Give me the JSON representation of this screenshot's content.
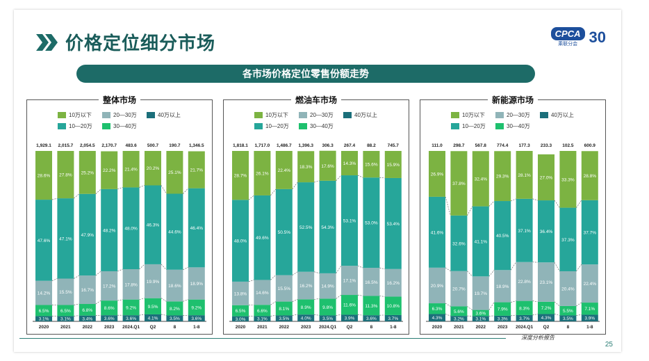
{
  "page": {
    "title": "价格定位细分市场",
    "banner": "各市场价格定位零售份额走势",
    "logo_text": "CPCA",
    "logo_sub": "乘联分会",
    "logo_30": "30",
    "footer_text": "深度分析报告",
    "page_number": "25"
  },
  "colors": {
    "lt10": "#7cb342",
    "r10_20": "#26a69a",
    "r20_30": "#90b4b8",
    "r30_40": "#1ec06e",
    "gt40": "#1b6f7a",
    "accent": "#1d6b67"
  },
  "legend": [
    {
      "key": "lt10",
      "label": "10万以下"
    },
    {
      "key": "r20_30",
      "label": "20—30万"
    },
    {
      "key": "gt40",
      "label": "40万以上"
    },
    {
      "key": "r10_20",
      "label": "10—20万"
    },
    {
      "key": "r30_40",
      "label": "30—40万"
    }
  ],
  "chart_data": [
    {
      "type": "bar",
      "stacked": "percent",
      "title": "整体市场",
      "categories": [
        "2020",
        "2021",
        "2022",
        "2023",
        "2024.Q1",
        "Q2",
        "8",
        "1-8"
      ],
      "totals": [
        "1,929.1",
        "2,015.7",
        "2,054.5",
        "2,170.7",
        "483.6",
        "500.7",
        "190.7",
        "1,346.5"
      ],
      "series": [
        {
          "name": "40万以上",
          "key": "gt40",
          "values": [
            3.1,
            3.1,
            3.4,
            3.6,
            3.6,
            4.1,
            3.5,
            3.6
          ]
        },
        {
          "name": "30—40万",
          "key": "r30_40",
          "values": [
            6.5,
            6.5,
            6.8,
            8.6,
            9.2,
            9.5,
            8.2,
            9.2
          ]
        },
        {
          "name": "20—30万",
          "key": "r20_30",
          "values": [
            14.2,
            15.5,
            16.7,
            17.2,
            17.8,
            19.9,
            18.6,
            18.9
          ]
        },
        {
          "name": "10—20万",
          "key": "r10_20",
          "values": [
            47.6,
            47.1,
            47.9,
            48.2,
            48.0,
            46.3,
            44.6,
            46.4
          ]
        },
        {
          "name": "10万以下",
          "key": "lt10",
          "values": [
            28.6,
            27.8,
            25.2,
            22.2,
            21.4,
            20.2,
            25.1,
            21.7
          ]
        }
      ]
    },
    {
      "type": "bar",
      "stacked": "percent",
      "title": "燃油车市场",
      "categories": [
        "2020",
        "2021",
        "2022",
        "2023",
        "2024.Q1",
        "Q2",
        "8",
        "1-8"
      ],
      "totals": [
        "1,818.1",
        "1,717.0",
        "1,486.7",
        "1,396.3",
        "306.3",
        "267.4",
        "88.2",
        "745.7"
      ],
      "series": [
        {
          "name": "40万以上",
          "key": "gt40",
          "values": [
            3.0,
            3.1,
            3.5,
            4.0,
            3.5,
            3.9,
            3.6,
            3.7
          ]
        },
        {
          "name": "30—40万",
          "key": "r30_40",
          "values": [
            6.5,
            6.6,
            8.1,
            8.9,
            9.8,
            11.6,
            11.3,
            10.8
          ]
        },
        {
          "name": "20—30万",
          "key": "r20_30",
          "values": [
            13.8,
            14.6,
            15.5,
            16.2,
            14.9,
            17.1,
            16.5,
            16.2
          ]
        },
        {
          "name": "10—20万",
          "key": "r10_20",
          "values": [
            48.0,
            49.6,
            50.5,
            52.5,
            54.3,
            53.1,
            53.0,
            53.4
          ]
        },
        {
          "name": "10万以下",
          "key": "lt10",
          "values": [
            28.7,
            26.1,
            22.4,
            18.3,
            17.6,
            14.3,
            15.6,
            15.9
          ]
        }
      ]
    },
    {
      "type": "bar",
      "stacked": "percent",
      "title": "新能源市场",
      "categories": [
        "2020",
        "2021",
        "2022",
        "2023",
        "2024.Q1",
        "Q2",
        "8",
        "1-8"
      ],
      "totals": [
        "111.0",
        "298.7",
        "567.8",
        "774.4",
        "177.3",
        "233.3",
        "102.5",
        "600.9"
      ],
      "series": [
        {
          "name": "40万以上",
          "key": "gt40",
          "values": [
            4.3,
            3.2,
            3.1,
            3.3,
            3.7,
            4.3,
            3.5,
            3.9
          ]
        },
        {
          "name": "30—40万",
          "key": "r30_40",
          "values": [
            6.3,
            5.6,
            3.6,
            7.9,
            8.3,
            7.2,
            5.5,
            7.1
          ]
        },
        {
          "name": "20—30万",
          "key": "r20_30",
          "values": [
            20.9,
            20.7,
            19.7,
            18.9,
            22.8,
            23.1,
            20.4,
            22.4
          ]
        },
        {
          "name": "10—20万",
          "key": "r10_20",
          "values": [
            41.6,
            32.6,
            41.1,
            40.5,
            37.1,
            36.4,
            37.3,
            37.7
          ]
        },
        {
          "name": "10万以下",
          "key": "lt10",
          "values": [
            26.9,
            37.8,
            32.4,
            29.3,
            28.1,
            27.0,
            33.3,
            28.8
          ]
        }
      ]
    }
  ]
}
